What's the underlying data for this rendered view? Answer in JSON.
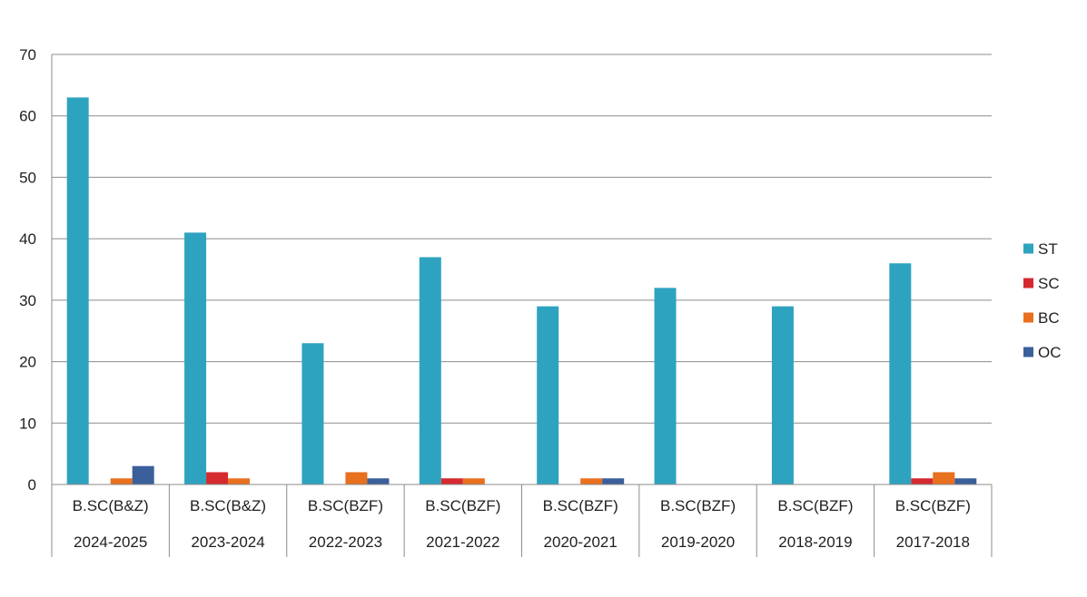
{
  "chart_data": {
    "type": "bar",
    "title": "",
    "xlabel": "",
    "ylabel": "",
    "ylim": [
      0,
      70
    ],
    "y_ticks": [
      0,
      10,
      20,
      30,
      40,
      50,
      60,
      70
    ],
    "grid": true,
    "legend_position": "right",
    "category_levels": {
      "course": [
        "B.SC(B&Z)",
        "B.SC(B&Z)",
        "B.SC(BZF)",
        "B.SC(BZF)",
        "B.SC(BZF)",
        "B.SC(BZF)",
        "B.SC(BZF)",
        "B.SC(BZF)"
      ],
      "year": [
        "2024-2025",
        "2023-2024",
        "2022-2023",
        "2021-2022",
        "2020-2021",
        "2019-2020",
        "2018-2019",
        "2017-2018"
      ]
    },
    "series": [
      {
        "name": "ST",
        "color": "#2EA3C0",
        "values": [
          63,
          41,
          23,
          37,
          29,
          32,
          29,
          36
        ]
      },
      {
        "name": "SC",
        "color": "#D42A2F",
        "values": [
          0,
          2,
          0,
          1,
          0,
          0,
          0,
          1
        ]
      },
      {
        "name": "BC",
        "color": "#E8701F",
        "values": [
          1,
          1,
          2,
          1,
          1,
          0,
          0,
          2
        ]
      },
      {
        "name": "OC",
        "color": "#3A5F9A",
        "values": [
          3,
          0,
          1,
          0,
          1,
          0,
          0,
          1
        ]
      }
    ],
    "colors": {
      "grid": "#8c8c8c",
      "axis": "#8c8c8c",
      "text": "#1f1f1f"
    }
  }
}
